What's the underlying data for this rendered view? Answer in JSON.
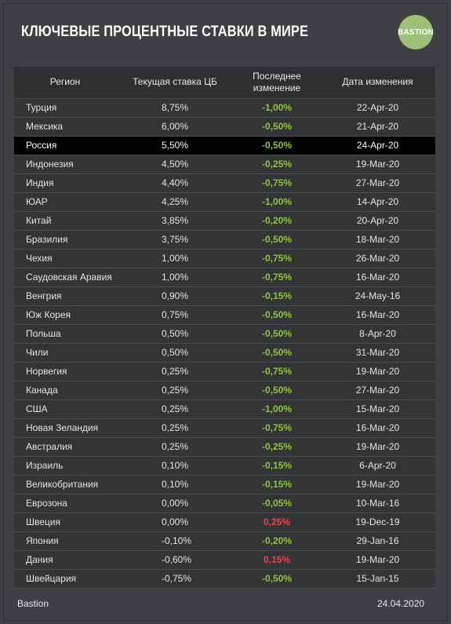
{
  "header": {
    "title": "КЛЮЧЕВЫЕ ПРОЦЕНТНЫЕ СТАВКИ В МИРЕ",
    "logo_text": "BASTION",
    "logo_color": "#9ec07a"
  },
  "footer": {
    "brand": "Bastion",
    "date": "24.04.2020"
  },
  "colors": {
    "decrease": "#8fc53f",
    "increase": "#e8464c",
    "highlight_row": "#000000"
  },
  "chart_data": {
    "type": "table",
    "columns": [
      "Регион",
      "Текущая ставка ЦБ",
      "Последнее изменение",
      "Дата изменения"
    ],
    "highlight": "Россия",
    "rows": [
      {
        "region": "Турция",
        "rate": "8,75%",
        "change": "-1,00%",
        "date": "22-Apr-20",
        "dir": "neg"
      },
      {
        "region": "Мексика",
        "rate": "6,00%",
        "change": "-0,50%",
        "date": "21-Apr-20",
        "dir": "neg"
      },
      {
        "region": "Россия",
        "rate": "5,50%",
        "change": "-0,50%",
        "date": "24-Apr-20",
        "dir": "neg"
      },
      {
        "region": "Индонезия",
        "rate": "4,50%",
        "change": "-0,25%",
        "date": "19-Mar-20",
        "dir": "neg"
      },
      {
        "region": "Индия",
        "rate": "4,40%",
        "change": "-0,75%",
        "date": "27-Mar-20",
        "dir": "neg"
      },
      {
        "region": "ЮАР",
        "rate": "4,25%",
        "change": "-1,00%",
        "date": "14-Apr-20",
        "dir": "neg"
      },
      {
        "region": "Китай",
        "rate": "3,85%",
        "change": "-0,20%",
        "date": "20-Apr-20",
        "dir": "neg"
      },
      {
        "region": "Бразилия",
        "rate": "3,75%",
        "change": "-0,50%",
        "date": "18-Mar-20",
        "dir": "neg"
      },
      {
        "region": "Чехия",
        "rate": "1,00%",
        "change": "-0,75%",
        "date": "26-Mar-20",
        "dir": "neg"
      },
      {
        "region": "Саудовская Аравия",
        "rate": "1,00%",
        "change": "-0,75%",
        "date": "16-Mar-20",
        "dir": "neg"
      },
      {
        "region": "Венгрия",
        "rate": "0,90%",
        "change": "-0,15%",
        "date": "24-May-16",
        "dir": "neg"
      },
      {
        "region": "Юж Корея",
        "rate": "0,75%",
        "change": "-0,50%",
        "date": "16-Mar-20",
        "dir": "neg"
      },
      {
        "region": "Польша",
        "rate": "0,50%",
        "change": "-0,50%",
        "date": "8-Apr-20",
        "dir": "neg"
      },
      {
        "region": "Чили",
        "rate": "0,50%",
        "change": "-0,50%",
        "date": "31-Mar-20",
        "dir": "neg"
      },
      {
        "region": "Норвегия",
        "rate": "0,25%",
        "change": "-0,75%",
        "date": "19-Mar-20",
        "dir": "neg"
      },
      {
        "region": "Канада",
        "rate": "0,25%",
        "change": "-0,50%",
        "date": "27-Mar-20",
        "dir": "neg"
      },
      {
        "region": "США",
        "rate": "0,25%",
        "change": "-1,00%",
        "date": "15-Mar-20",
        "dir": "neg"
      },
      {
        "region": "Новая Зеландия",
        "rate": "0,25%",
        "change": "-0,75%",
        "date": "16-Mar-20",
        "dir": "neg"
      },
      {
        "region": "Австралия",
        "rate": "0,25%",
        "change": "-0,25%",
        "date": "19-Mar-20",
        "dir": "neg"
      },
      {
        "region": "Израиль",
        "rate": "0,10%",
        "change": "-0,15%",
        "date": "6-Apr-20",
        "dir": "neg"
      },
      {
        "region": "Великобритания",
        "rate": "0,10%",
        "change": "-0,15%",
        "date": "19-Mar-20",
        "dir": "neg"
      },
      {
        "region": "Еврозона",
        "rate": "0,00%",
        "change": "-0,05%",
        "date": "10-Mar-16",
        "dir": "neg"
      },
      {
        "region": "Швеция",
        "rate": "0,00%",
        "change": "0,25%",
        "date": "19-Dec-19",
        "dir": "pos"
      },
      {
        "region": "Япония",
        "rate": "-0,10%",
        "change": "-0,20%",
        "date": "29-Jan-16",
        "dir": "neg"
      },
      {
        "region": "Дания",
        "rate": "-0,60%",
        "change": "0,15%",
        "date": "19-Mar-20",
        "dir": "pos"
      },
      {
        "region": "Швейцария",
        "rate": "-0,75%",
        "change": "-0,50%",
        "date": "15-Jan-15",
        "dir": "neg"
      }
    ]
  }
}
